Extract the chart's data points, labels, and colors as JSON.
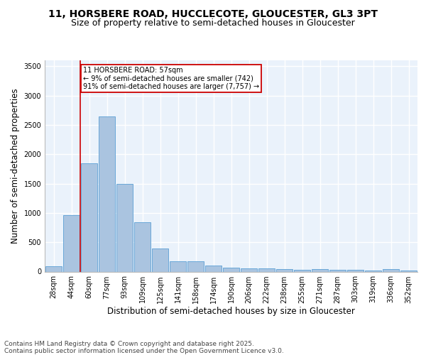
{
  "title_line1": "11, HORSBERE ROAD, HUCCLECOTE, GLOUCESTER, GL3 3PT",
  "title_line2": "Size of property relative to semi-detached houses in Gloucester",
  "xlabel": "Distribution of semi-detached houses by size in Gloucester",
  "ylabel": "Number of semi-detached properties",
  "bar_color": "#aac4e0",
  "bar_edge_color": "#5a9fd4",
  "background_color": "#eaf2fb",
  "grid_color": "#ffffff",
  "annotation_text": "11 HORSBERE ROAD: 57sqm\n← 9% of semi-detached houses are smaller (742)\n91% of semi-detached houses are larger (7,757) →",
  "annotation_box_color": "#cc0000",
  "vline_color": "#cc0000",
  "vline_x": 1.5,
  "categories": [
    "28sqm",
    "44sqm",
    "60sqm",
    "77sqm",
    "93sqm",
    "109sqm",
    "125sqm",
    "141sqm",
    "158sqm",
    "174sqm",
    "190sqm",
    "206sqm",
    "222sqm",
    "238sqm",
    "255sqm",
    "271sqm",
    "287sqm",
    "303sqm",
    "319sqm",
    "336sqm",
    "352sqm"
  ],
  "bar_heights": [
    90,
    960,
    1840,
    2650,
    1490,
    840,
    390,
    175,
    175,
    105,
    65,
    55,
    50,
    45,
    35,
    45,
    35,
    30,
    20,
    40,
    20
  ],
  "ylim": [
    0,
    3600
  ],
  "yticks": [
    0,
    500,
    1000,
    1500,
    2000,
    2500,
    3000,
    3500
  ],
  "footer_text": "Contains HM Land Registry data © Crown copyright and database right 2025.\nContains public sector information licensed under the Open Government Licence v3.0.",
  "title_fontsize": 10,
  "subtitle_fontsize": 9,
  "axis_label_fontsize": 8.5,
  "tick_fontsize": 7,
  "footer_fontsize": 6.5,
  "annotation_fontsize": 7
}
